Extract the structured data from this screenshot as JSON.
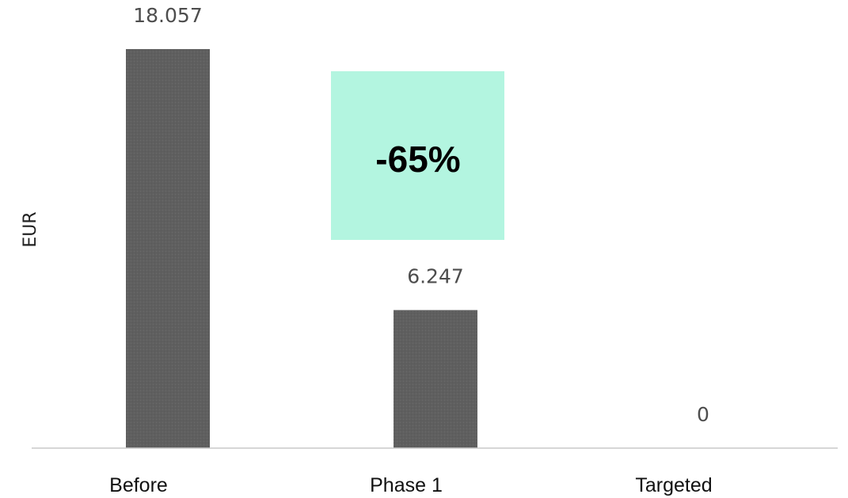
{
  "chart_data": {
    "type": "bar",
    "title": "",
    "xlabel": "",
    "ylabel": "EUR",
    "categories": [
      "Before",
      "Phase 1",
      "Targeted"
    ],
    "values": [
      18057,
      6247,
      0
    ],
    "data_labels": [
      "18.057",
      "6.247",
      "0"
    ],
    "ylim": [
      0,
      18057
    ],
    "grid": false,
    "legend": "none",
    "bar_color": "#5f5f5f",
    "axis_color": "#c8c8c8",
    "annotations": [
      {
        "text": "-65%",
        "background": "#b3f5e0"
      }
    ]
  }
}
